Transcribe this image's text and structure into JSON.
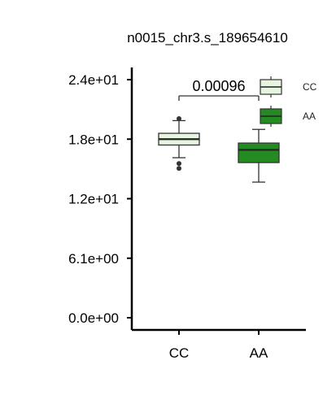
{
  "chart_data": {
    "type": "box",
    "title": "n0015_chr3.s_189654610",
    "xlabel": "",
    "ylabel": "",
    "categories": [
      "CC",
      "AA"
    ],
    "y_tick_labels": [
      "0.0e+00",
      "6.1e+00",
      "1.2e+01",
      "1.8e+01",
      "2.4e+01"
    ],
    "y_ticks": [
      0,
      6.1,
      12.2,
      18.3,
      24.4
    ],
    "ylim": [
      -0.6,
      25.6
    ],
    "grid": false,
    "legend_position": "top-right",
    "pvalue_annotation": "0.00096",
    "series": [
      {
        "name": "CC",
        "color": "#e5f5e0",
        "q1": 17.7,
        "median": 18.3,
        "q3": 18.9,
        "whisker_low": 16.4,
        "whisker_high": 20.2,
        "outliers": [
          15.3,
          15.8,
          20.4
        ]
      },
      {
        "name": "AA",
        "color": "#238b22",
        "q1": 15.9,
        "median": 17.2,
        "q3": 17.9,
        "whisker_low": 13.9,
        "whisker_high": 19.3,
        "outliers": []
      }
    ]
  }
}
